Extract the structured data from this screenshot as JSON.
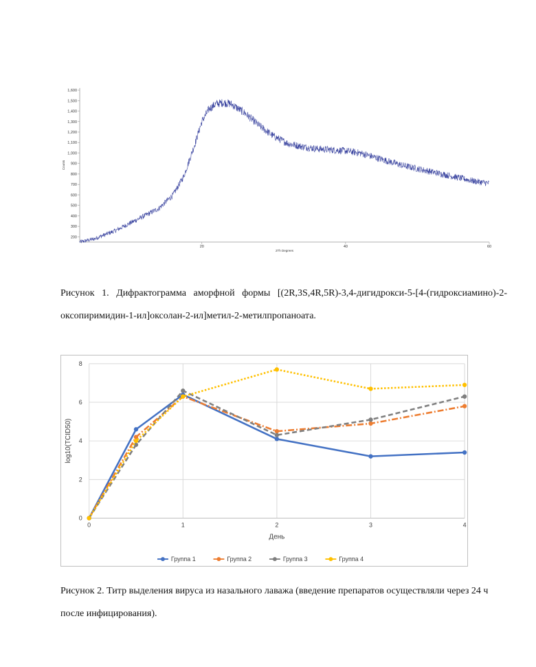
{
  "figure1": {
    "chart_data": {
      "type": "line",
      "xlabel": "2Th Degrees",
      "ylabel": "Counts",
      "x_ticks": [
        "20",
        "40",
        "60"
      ],
      "y_ticks": [
        "200",
        "300",
        "400",
        "500",
        "600",
        "700",
        "800",
        "900",
        "1,000",
        "1,100",
        "1,200",
        "1,300",
        "1,400",
        "1,500",
        "1,600"
      ],
      "xlim": [
        3,
        60
      ],
      "ylim": [
        150,
        1620
      ],
      "color": "#3b45a0",
      "profile": {
        "x": [
          3,
          5,
          8,
          10,
          12,
          14,
          16,
          17.5,
          19,
          20,
          21,
          22,
          23,
          24,
          26,
          28,
          30,
          32,
          34,
          36,
          38,
          40,
          42,
          44,
          46,
          48,
          50,
          52,
          54,
          56,
          58,
          60
        ],
        "y": [
          150,
          180,
          260,
          330,
          400,
          470,
          600,
          780,
          1080,
          1300,
          1420,
          1470,
          1480,
          1470,
          1380,
          1260,
          1160,
          1090,
          1060,
          1040,
          1030,
          1020,
          1000,
          960,
          920,
          880,
          850,
          820,
          790,
          760,
          730,
          710
        ]
      },
      "caption": "Рисунок 1. Дифрактограмма аморфной формы [(2R,3S,4R,5R)-3,4-дигидрокси-5-[4-(гидроксиамино)-2-оксопиримидин-1-ил]оксолан-2-ил]метил-2-метилпропаноата."
    }
  },
  "figure2": {
    "chart_data": {
      "type": "line",
      "xlabel": "День",
      "ylabel": "log10(TCID50)",
      "x": [
        0,
        0.5,
        1,
        2,
        3,
        4
      ],
      "x_ticks": [
        "0",
        "1",
        "2",
        "3",
        "4"
      ],
      "y_ticks": [
        "0",
        "2",
        "4",
        "6",
        "8"
      ],
      "xlim": [
        0,
        4
      ],
      "ylim": [
        0,
        8
      ],
      "legend_position": "bottom",
      "series": [
        {
          "name": "Группа 1",
          "color": "#4472c4",
          "style": "solid",
          "values": [
            0,
            4.6,
            6.4,
            4.1,
            3.2,
            3.4
          ]
        },
        {
          "name": "Группа 2",
          "color": "#ed7d31",
          "style": "dashdot",
          "values": [
            0,
            4.2,
            6.3,
            4.5,
            4.9,
            5.8
          ]
        },
        {
          "name": "Группа 3",
          "color": "#7f7f7f",
          "style": "dash",
          "values": [
            0,
            3.8,
            6.6,
            4.3,
            5.1,
            6.3
          ]
        },
        {
          "name": "Группа 4",
          "color": "#ffc000",
          "style": "dot",
          "values": [
            0,
            4.0,
            6.3,
            7.7,
            6.7,
            6.9
          ]
        }
      ],
      "caption": "Рисунок 2. Титр выделения вируса из назального лаважа (введение препаратов осуществляли через 24 ч после инфицирования)."
    }
  }
}
